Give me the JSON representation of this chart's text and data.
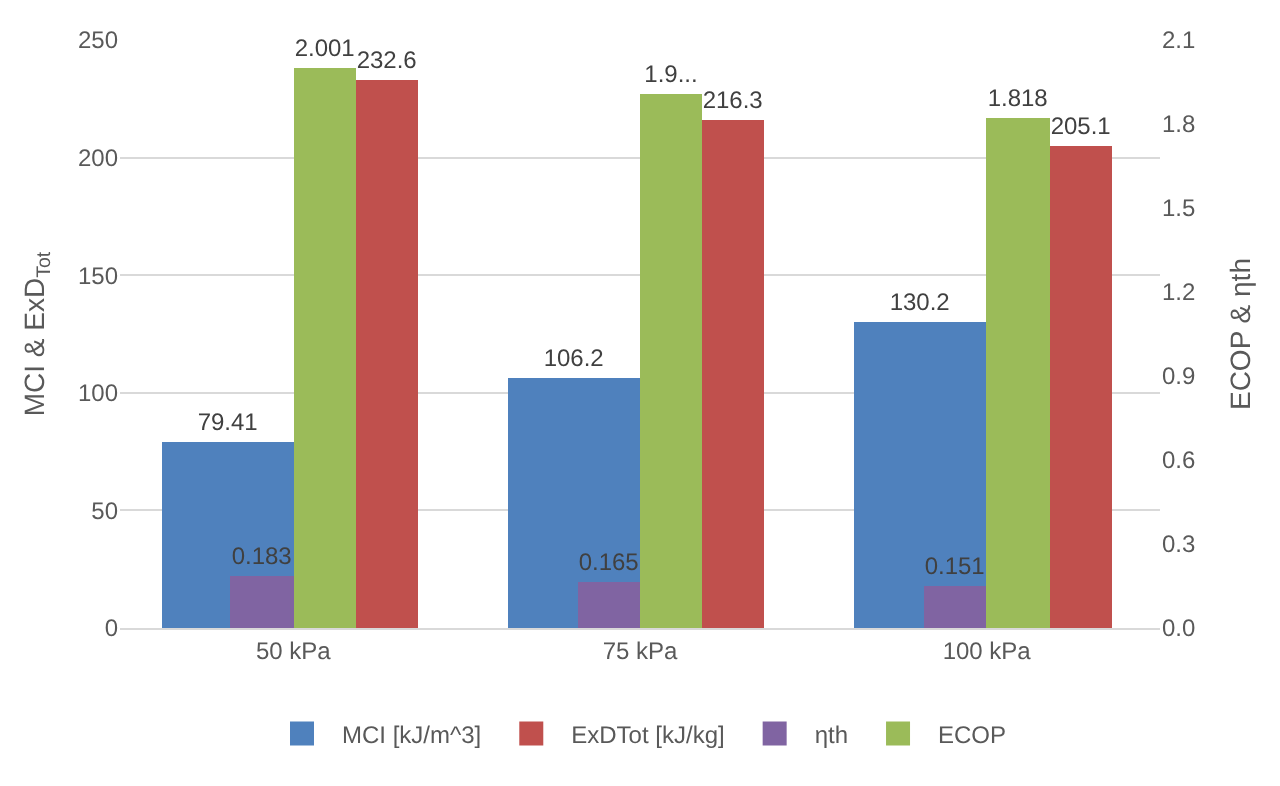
{
  "chart_data": {
    "type": "bar",
    "categories": [
      "50 kPa",
      "75 kPa",
      "100 kPa"
    ],
    "ylabel": "MCI & ExD$_{Tot}$",
    "y2label": "ECOP & ηth",
    "ylim": [
      0,
      250
    ],
    "yticks": [
      0,
      50,
      100,
      150,
      200,
      250
    ],
    "y2lim": [
      0,
      2.1
    ],
    "y2ticks": [
      {
        "value": 0,
        "label": "0.0"
      },
      0.3,
      0.6,
      0.9,
      1.2,
      1.5,
      1.8,
      2.1
    ],
    "grid": "y",
    "legend": "bottom",
    "series": [
      {
        "name": "MCI [kJ/m^3]",
        "color": "#4f81bd",
        "values": [
          79.41,
          106.2,
          130.2
        ],
        "value_labels": [
          "79.41",
          "106.2",
          "130.2"
        ]
      },
      {
        "name": "ExDTot [kJ/kg]",
        "color": "#c0504d",
        "values": [
          232.6,
          216.3,
          205.1
        ],
        "value_labels": [
          "232.6",
          "216.3",
          "205.1"
        ]
      },
      {
        "name": "ηth",
        "color": "#8064a2",
        "axis": "y2",
        "values": [
          0.183,
          0.165,
          0.151
        ],
        "value_labels": [
          "0.183",
          "0.165",
          "0.151"
        ]
      },
      {
        "name": "ECOP",
        "color": "#9bbb59",
        "axis": "y2",
        "values": [
          2.001,
          1.907,
          1.818
        ],
        "value_labels": [
          "2.001",
          "1.9...",
          "1.818"
        ]
      }
    ]
  }
}
